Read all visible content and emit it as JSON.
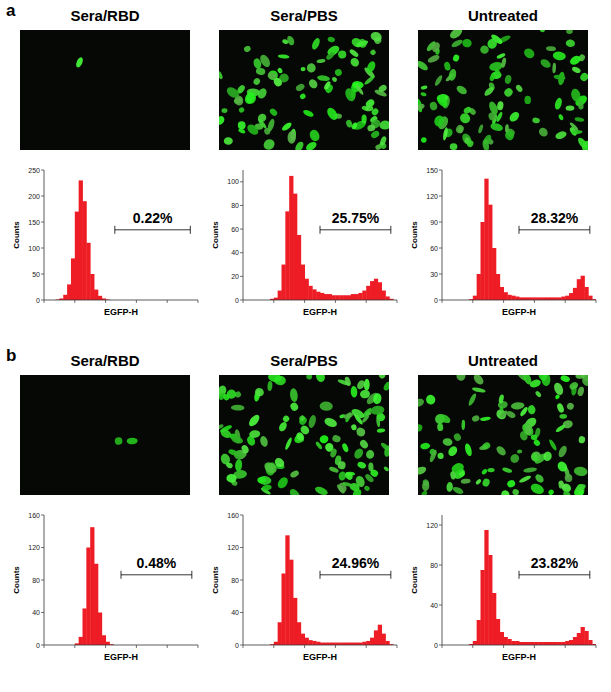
{
  "panels": [
    {
      "label": "a"
    },
    {
      "label": "b"
    }
  ],
  "chart_data": [
    {
      "type": "histogram",
      "title": "Sera/RBD",
      "x_label": "EGFP-H",
      "y_label": "Counts",
      "color": "#ee1c25",
      "bins": [
        0,
        25,
        50,
        75,
        100,
        125,
        150,
        175,
        200,
        225,
        250,
        275,
        300,
        325,
        350,
        375,
        400,
        425,
        450,
        475,
        500,
        525,
        550,
        575,
        600,
        625,
        650,
        675,
        700,
        725,
        750,
        775,
        800,
        825,
        850,
        875,
        900,
        925,
        950,
        975,
        1000
      ],
      "values": [
        0,
        0,
        0,
        1,
        3,
        10,
        30,
        80,
        170,
        230,
        190,
        110,
        50,
        20,
        8,
        3,
        1,
        0,
        0,
        0,
        0,
        0,
        0,
        0,
        0,
        0,
        0,
        0,
        0,
        0,
        0,
        0,
        0,
        0,
        0,
        0,
        0,
        0,
        0,
        0
      ],
      "xlim": [
        0,
        1000
      ],
      "xticks": [
        0,
        200,
        400,
        600,
        800,
        1000
      ],
      "ylim": [
        0,
        250
      ],
      "yticks": [
        0,
        50,
        100,
        150,
        200,
        250
      ],
      "tick_labels": "y",
      "annotations": [
        {
          "text": "0.22%",
          "x_range": [
            460,
            950
          ]
        }
      ]
    },
    {
      "type": "histogram",
      "title": "Sera/PBS",
      "x_label": "EGFP-H",
      "y_label": "Counts",
      "color": "#ee1c25",
      "bins": [
        0,
        25,
        50,
        75,
        100,
        125,
        150,
        175,
        200,
        225,
        250,
        275,
        300,
        325,
        350,
        375,
        400,
        425,
        450,
        475,
        500,
        525,
        550,
        575,
        600,
        625,
        650,
        675,
        700,
        725,
        750,
        775,
        800,
        825,
        850,
        875,
        900,
        925,
        950,
        975,
        1000
      ],
      "values": [
        0,
        0,
        0,
        0,
        0,
        0,
        0,
        1,
        2,
        8,
        30,
        75,
        105,
        90,
        55,
        30,
        18,
        12,
        9,
        7,
        6,
        5,
        5,
        4,
        4,
        4,
        4,
        4,
        5,
        5,
        6,
        8,
        12,
        16,
        18,
        15,
        8,
        3,
        1,
        0
      ],
      "xlim": [
        0,
        1000
      ],
      "xticks": [
        0,
        200,
        400,
        600,
        800,
        1000
      ],
      "ylim": [
        0,
        110
      ],
      "yticks": [
        0,
        20,
        40,
        60,
        80,
        100
      ],
      "tick_labels": "y",
      "annotations": [
        {
          "text": "25.75%",
          "x_range": [
            500,
            960
          ]
        }
      ]
    },
    {
      "type": "histogram",
      "title": "Untreated",
      "x_label": "EGFP-H",
      "y_label": "Counts",
      "color": "#ee1c25",
      "bins": [
        0,
        25,
        50,
        75,
        100,
        125,
        150,
        175,
        200,
        225,
        250,
        275,
        300,
        325,
        350,
        375,
        400,
        425,
        450,
        475,
        500,
        525,
        550,
        575,
        600,
        625,
        650,
        675,
        700,
        725,
        750,
        775,
        800,
        825,
        850,
        875,
        900,
        925,
        950,
        975,
        1000
      ],
      "values": [
        0,
        0,
        0,
        0,
        0,
        0,
        0,
        1,
        5,
        30,
        90,
        140,
        110,
        60,
        30,
        15,
        9,
        6,
        5,
        4,
        3,
        3,
        3,
        3,
        3,
        3,
        3,
        3,
        3,
        3,
        3,
        4,
        5,
        8,
        14,
        24,
        28,
        15,
        5,
        1
      ],
      "xlim": [
        0,
        1000
      ],
      "xticks": [
        0,
        200,
        400,
        600,
        800,
        1000
      ],
      "ylim": [
        0,
        150
      ],
      "yticks": [
        0,
        30,
        60,
        90,
        120,
        150
      ],
      "tick_labels": "y",
      "annotations": [
        {
          "text": "28.32%",
          "x_range": [
            500,
            960
          ]
        }
      ]
    },
    {
      "type": "histogram",
      "title": "Sera/RBD",
      "x_label": "EGFP-H",
      "y_label": "Counts",
      "color": "#ee1c25",
      "bins": [
        0,
        25,
        50,
        75,
        100,
        125,
        150,
        175,
        200,
        225,
        250,
        275,
        300,
        325,
        350,
        375,
        400,
        425,
        450,
        475,
        500,
        525,
        550,
        575,
        600,
        625,
        650,
        675,
        700,
        725,
        750,
        775,
        800,
        825,
        850,
        875,
        900,
        925,
        950,
        975,
        1000
      ],
      "values": [
        0,
        0,
        0,
        0,
        0,
        0,
        0,
        0,
        2,
        10,
        45,
        120,
        145,
        100,
        40,
        12,
        4,
        1,
        0,
        0,
        0,
        0,
        0,
        0,
        0,
        0,
        0,
        0,
        0,
        0,
        0,
        0,
        0,
        0,
        0,
        0,
        0,
        0,
        0,
        0
      ],
      "xlim": [
        0,
        1000
      ],
      "xticks": [
        0,
        200,
        400,
        600,
        800,
        1000
      ],
      "ylim": [
        0,
        160
      ],
      "yticks": [
        0,
        40,
        80,
        120,
        160
      ],
      "tick_labels": "y",
      "annotations": [
        {
          "text": "0.48%",
          "x_range": [
            500,
            960
          ]
        }
      ]
    },
    {
      "type": "histogram",
      "title": "Sera/PBS",
      "x_label": "EGFP-H",
      "y_label": "Counts",
      "color": "#ee1c25",
      "bins": [
        0,
        25,
        50,
        75,
        100,
        125,
        150,
        175,
        200,
        225,
        250,
        275,
        300,
        325,
        350,
        375,
        400,
        425,
        450,
        475,
        500,
        525,
        550,
        575,
        600,
        625,
        650,
        675,
        700,
        725,
        750,
        775,
        800,
        825,
        850,
        875,
        900,
        925,
        950,
        975,
        1000
      ],
      "values": [
        0,
        0,
        0,
        0,
        0,
        0,
        0,
        1,
        4,
        28,
        88,
        135,
        105,
        58,
        28,
        14,
        9,
        6,
        5,
        4,
        3,
        3,
        3,
        3,
        3,
        3,
        3,
        3,
        3,
        3,
        3,
        4,
        5,
        9,
        18,
        25,
        14,
        5,
        1,
        0
      ],
      "xlim": [
        0,
        1000
      ],
      "xticks": [
        0,
        200,
        400,
        600,
        800,
        1000
      ],
      "ylim": [
        0,
        160
      ],
      "yticks": [
        0,
        40,
        80,
        120,
        160
      ],
      "tick_labels": "y",
      "annotations": [
        {
          "text": "24.96%",
          "x_range": [
            500,
            960
          ]
        }
      ]
    },
    {
      "type": "histogram",
      "title": "Untreated",
      "x_label": "EGFP-H",
      "y_label": "Counts",
      "color": "#ee1c25",
      "bins": [
        0,
        25,
        50,
        75,
        100,
        125,
        150,
        175,
        200,
        225,
        250,
        275,
        300,
        325,
        350,
        375,
        400,
        425,
        450,
        475,
        500,
        525,
        550,
        575,
        600,
        625,
        650,
        675,
        700,
        725,
        750,
        775,
        800,
        825,
        850,
        875,
        900,
        925,
        950,
        975,
        1000
      ],
      "values": [
        0,
        0,
        0,
        0,
        0,
        0,
        0,
        1,
        4,
        25,
        75,
        115,
        90,
        52,
        26,
        13,
        8,
        6,
        4,
        4,
        3,
        3,
        3,
        3,
        3,
        3,
        3,
        3,
        3,
        3,
        3,
        3,
        4,
        5,
        8,
        12,
        18,
        14,
        5,
        1
      ],
      "xlim": [
        0,
        1000
      ],
      "xticks": [
        0,
        200,
        400,
        600,
        800,
        1000
      ],
      "ylim": [
        0,
        130
      ],
      "yticks": [
        0,
        40,
        80,
        120
      ],
      "tick_labels": "y",
      "annotations": [
        {
          "text": "23.82%",
          "x_range": [
            500,
            960
          ]
        }
      ]
    }
  ]
}
